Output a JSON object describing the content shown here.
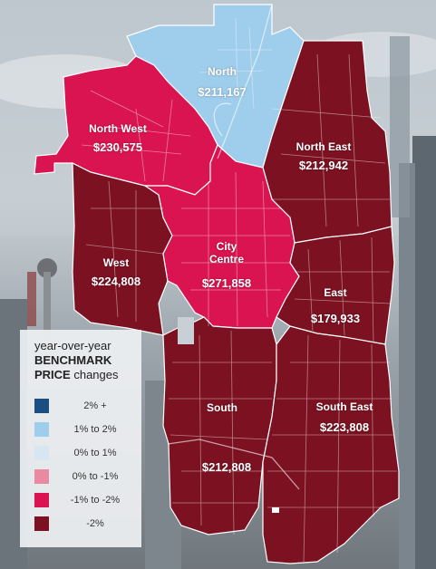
{
  "legend": {
    "title_line1": "year-over-year",
    "title_line2": "BENCHMARK",
    "title_line3_bold": "PRICE",
    "title_line3_rest": " changes",
    "items": [
      {
        "label": "2% +",
        "color": "#1b4f82"
      },
      {
        "label": "1% to 2%",
        "color": "#9fcdec"
      },
      {
        "label": "0% to 1%",
        "color": "#d8e6f2"
      },
      {
        "label": "0% to -1%",
        "color": "#e98aa0"
      },
      {
        "label": "-1% to -2%",
        "color": "#d91450"
      },
      {
        "label": "-2%",
        "color": "#7c1221"
      }
    ]
  },
  "regions": {
    "north": {
      "name": "North",
      "price": "$211,167",
      "color": "#9fcdec"
    },
    "north_west": {
      "name": "North West",
      "price": "$230,575",
      "color": "#d91450"
    },
    "north_east": {
      "name": "North East",
      "price": "$212,942",
      "color": "#7c1221"
    },
    "west": {
      "name": "West",
      "price": "$224,808",
      "color": "#7c1221"
    },
    "city_centre": {
      "name": "City Centre",
      "price": "$271,858",
      "color": "#d91450"
    },
    "east": {
      "name": "East",
      "price": "$179,933",
      "color": "#7c1221"
    },
    "south": {
      "name": "South",
      "price": "$212,808",
      "color": "#7c1221"
    },
    "south_east": {
      "name": "South East",
      "price": "$223,808",
      "color": "#7c1221"
    }
  }
}
